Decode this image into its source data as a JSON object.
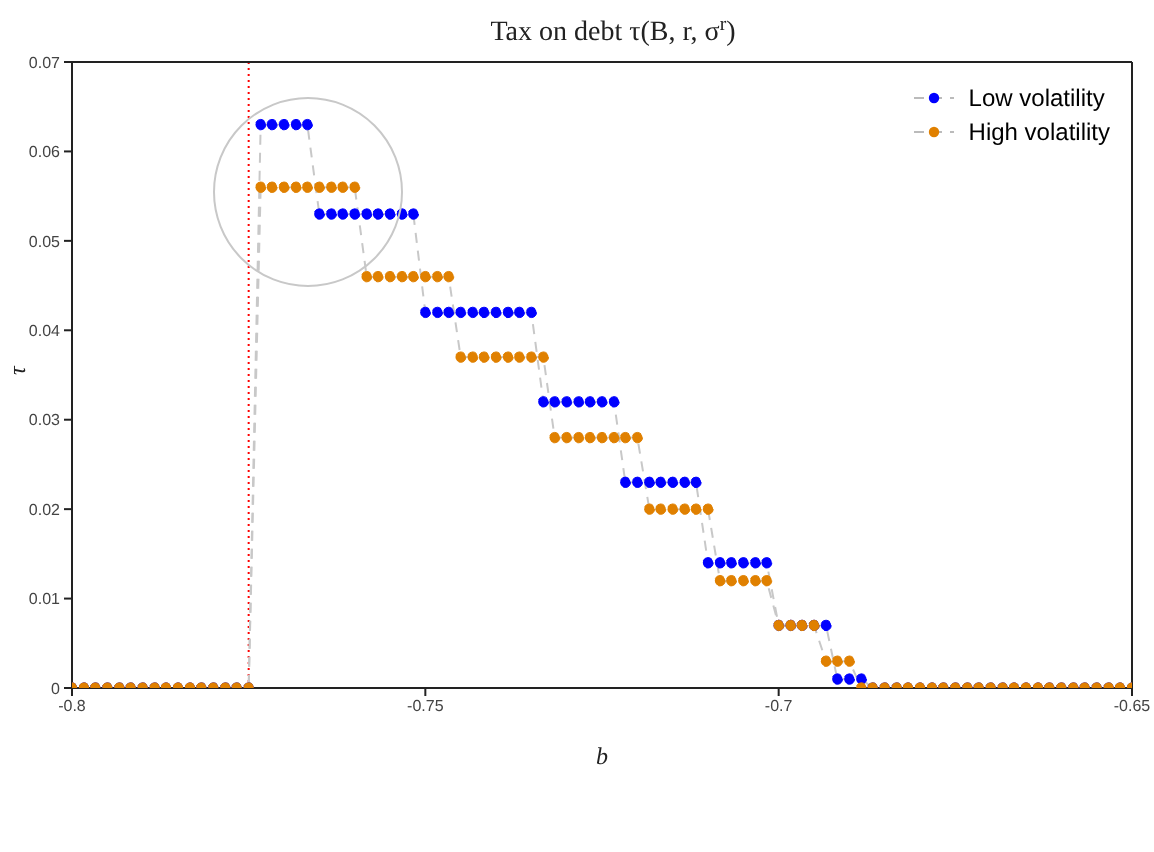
{
  "chart_data": {
    "type": "line",
    "title": "Tax on debt τ(B, r, σ$^{r}$)",
    "xlabel": "b",
    "ylabel": "τ",
    "x": [
      -0.8,
      -0.7983,
      -0.7967,
      -0.795,
      -0.7933,
      -0.7917,
      -0.79,
      -0.7883,
      -0.7867,
      -0.785,
      -0.7833,
      -0.7817,
      -0.78,
      -0.7783,
      -0.7767,
      -0.775,
      -0.7733,
      -0.7717,
      -0.77,
      -0.7683,
      -0.7667,
      -0.765,
      -0.7633,
      -0.7617,
      -0.76,
      -0.7583,
      -0.7567,
      -0.755,
      -0.7533,
      -0.7517,
      -0.75,
      -0.7483,
      -0.7467,
      -0.745,
      -0.7433,
      -0.7417,
      -0.74,
      -0.7383,
      -0.7367,
      -0.735,
      -0.7333,
      -0.7317,
      -0.73,
      -0.7283,
      -0.7267,
      -0.725,
      -0.7233,
      -0.7217,
      -0.72,
      -0.7183,
      -0.7167,
      -0.715,
      -0.7133,
      -0.7117,
      -0.71,
      -0.7083,
      -0.7067,
      -0.705,
      -0.7033,
      -0.7017,
      -0.7,
      -0.6983,
      -0.6967,
      -0.695,
      -0.6933,
      -0.6917,
      -0.69,
      -0.6883,
      -0.6867,
      -0.685,
      -0.6833,
      -0.6817,
      -0.68,
      -0.6783,
      -0.6767,
      -0.675,
      -0.6733,
      -0.6717,
      -0.67,
      -0.6683,
      -0.6667,
      -0.665,
      -0.6633,
      -0.6617,
      -0.66,
      -0.6583,
      -0.6567,
      -0.655,
      -0.6533,
      -0.6517,
      -0.65
    ],
    "series": [
      {
        "name": "Low volatility",
        "color": "#0000ff",
        "values": [
          0,
          0,
          0,
          0,
          0,
          0,
          0,
          0,
          0,
          0,
          0,
          0,
          0,
          0,
          0,
          0,
          0.063,
          0.063,
          0.063,
          0.063,
          0.063,
          0.053,
          0.053,
          0.053,
          0.053,
          0.053,
          0.053,
          0.053,
          0.053,
          0.053,
          0.042,
          0.042,
          0.042,
          0.042,
          0.042,
          0.042,
          0.042,
          0.042,
          0.042,
          0.042,
          0.032,
          0.032,
          0.032,
          0.032,
          0.032,
          0.032,
          0.032,
          0.023,
          0.023,
          0.023,
          0.023,
          0.023,
          0.023,
          0.023,
          0.014,
          0.014,
          0.014,
          0.014,
          0.014,
          0.014,
          0.007,
          0.007,
          0.007,
          0.007,
          0.007,
          0.001,
          0.001,
          0.001,
          0,
          0,
          0,
          0,
          0,
          0,
          0,
          0,
          0,
          0,
          0,
          0,
          0,
          0,
          0,
          0,
          0,
          0,
          0,
          0,
          0,
          0,
          0
        ]
      },
      {
        "name": "High volatility",
        "color": "#e08000",
        "values": [
          0,
          0,
          0,
          0,
          0,
          0,
          0,
          0,
          0,
          0,
          0,
          0,
          0,
          0,
          0,
          0,
          0.056,
          0.056,
          0.056,
          0.056,
          0.056,
          0.056,
          0.056,
          0.056,
          0.056,
          0.046,
          0.046,
          0.046,
          0.046,
          0.046,
          0.046,
          0.046,
          0.046,
          0.037,
          0.037,
          0.037,
          0.037,
          0.037,
          0.037,
          0.037,
          0.037,
          0.028,
          0.028,
          0.028,
          0.028,
          0.028,
          0.028,
          0.028,
          0.028,
          0.02,
          0.02,
          0.02,
          0.02,
          0.02,
          0.02,
          0.012,
          0.012,
          0.012,
          0.012,
          0.012,
          0.007,
          0.007,
          0.007,
          0.007,
          0.003,
          0.003,
          0.003,
          0,
          0,
          0,
          0,
          0,
          0,
          0,
          0,
          0,
          0,
          0,
          0,
          0,
          0,
          0,
          0,
          0,
          0,
          0,
          0,
          0,
          0,
          0,
          0
        ]
      }
    ],
    "xlim": [
      -0.8,
      -0.65
    ],
    "xticks": [
      -0.8,
      -0.75,
      -0.7,
      -0.65
    ],
    "ylim": [
      0,
      0.07
    ],
    "yticks": [
      0,
      0.01,
      0.02,
      0.03,
      0.04,
      0.05,
      0.06,
      0.07
    ],
    "ref_lines": [
      {
        "axis": "x",
        "value": -0.775,
        "color": "#ff0000",
        "line_style": "dotted"
      }
    ],
    "grid": false,
    "legend": "top right",
    "marker": "circle",
    "line_style": "dashed"
  }
}
